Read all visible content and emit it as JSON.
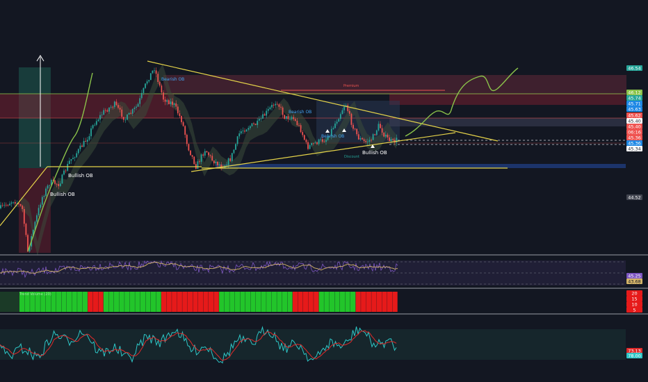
{
  "colors": {
    "background": "#131722",
    "up": "#26a69a",
    "down": "#ef5350",
    "trendline": "#e6d44a",
    "projection": "#8bc34a",
    "rsi": "#7e57c2",
    "rsi_ma": "#d4b56a",
    "bull_bar": "#22c52a",
    "bear_bar": "#e61a1a",
    "stoch_k": "#2ec6c6",
    "stoch_d": "#e02a2a",
    "separator": "#c8cbd3",
    "supply_zone": "#a8324a",
    "demand_zone": "#1e88e5"
  },
  "chart_data": [
    {
      "type": "candlestick",
      "pane": "price",
      "notes": "Candle values are approximate, read from the axis price tags.",
      "y_axis_labels": [
        {
          "value": "46.54",
          "color": "#26a69a"
        },
        {
          "value": "46.12",
          "color": "#8bc34a"
        },
        {
          "value": "45.74",
          "color": "#26a69a"
        },
        {
          "value": "45.71",
          "color": "#1e88e5"
        },
        {
          "value": "45.63",
          "color": "#1e88e5"
        },
        {
          "value": "45.62",
          "color": "#ef5350"
        },
        {
          "value": "45.40",
          "color": "#ffffff",
          "text_color": "#131722"
        },
        {
          "value": "45.40",
          "color": "#ef5350"
        },
        {
          "value": "06:16",
          "color": "#ef5350"
        },
        {
          "value": "45.36",
          "color": "#ef5350"
        },
        {
          "value": "45.36",
          "color": "#1e88e5"
        },
        {
          "value": "45.34",
          "color": "#ffffff",
          "text_color": "#131722"
        },
        {
          "value": "44.52",
          "color": "#434651"
        }
      ],
      "annotations": [
        {
          "text": "Bullish OB",
          "color": "#ffffff"
        },
        {
          "text": "Bullish OB",
          "color": "#ffffff"
        },
        {
          "text": "Bullish OB",
          "color": "#ffffff"
        },
        {
          "text": "Bearish OB",
          "color": "#42a5f5"
        },
        {
          "text": "Bearish OB",
          "color": "#42a5f5"
        },
        {
          "text": "Bearish OB",
          "color": "#42a5f5"
        },
        {
          "text": "Premium",
          "color": "#ef5350"
        },
        {
          "text": "Discount",
          "color": "#26a69a"
        }
      ]
    },
    {
      "type": "line",
      "pane": "rsi",
      "y_axis_labels": [
        {
          "value": "45.25",
          "color": "#7e57c2"
        },
        {
          "value": "43.68",
          "color": "#d4b56a",
          "text_color": "#131722"
        }
      ]
    },
    {
      "type": "bar",
      "pane": "trend",
      "legend_text": "Trend Volume (20)",
      "segments": [
        {
          "color": "bull",
          "bars": 13
        },
        {
          "color": "bear",
          "bars": 3
        },
        {
          "color": "bull",
          "bars": 11
        },
        {
          "color": "bear",
          "bars": 11
        },
        {
          "color": "bull",
          "bars": 14
        },
        {
          "color": "bear",
          "bars": 5
        },
        {
          "color": "bull",
          "bars": 7
        },
        {
          "color": "bear",
          "bars": 8
        }
      ],
      "y_axis_labels": [
        {
          "value": "20",
          "color": "#e61a1a"
        },
        {
          "value": "15",
          "color": "#e61a1a"
        },
        {
          "value": "10",
          "color": "#e61a1a"
        },
        {
          "value": "5",
          "color": "#e61a1a"
        }
      ]
    },
    {
      "type": "line",
      "pane": "stochastic",
      "y_axis_labels": [
        {
          "value": "73.13",
          "color": "#e02a2a"
        },
        {
          "value": "78.00",
          "color": "#2ec6c6"
        }
      ]
    }
  ]
}
